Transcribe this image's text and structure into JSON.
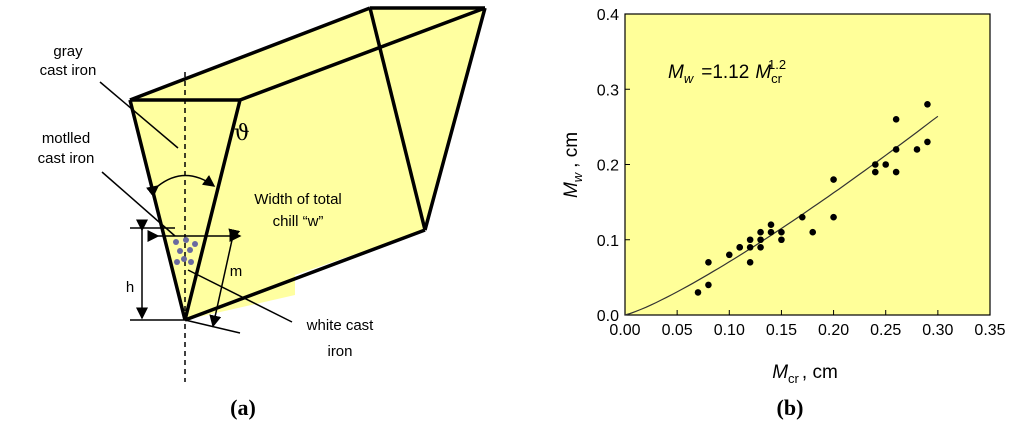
{
  "diagram": {
    "gray_label": [
      "gray",
      "cast iron"
    ],
    "mottled_label": [
      "motlled",
      "cast iron"
    ],
    "width_label": [
      "Width of total",
      "chill “w”"
    ],
    "white_label": [
      "white cast",
      "iron"
    ],
    "h_label": "h",
    "m_label": "m",
    "angle_label": "ϑ",
    "panel_label": "(a)"
  },
  "panel_label_b": "(b)",
  "chart_data": {
    "type": "scatter",
    "x": [
      0.07,
      0.08,
      0.08,
      0.1,
      0.11,
      0.11,
      0.12,
      0.12,
      0.12,
      0.13,
      0.13,
      0.13,
      0.14,
      0.14,
      0.15,
      0.15,
      0.17,
      0.18,
      0.2,
      0.2,
      0.24,
      0.24,
      0.25,
      0.26,
      0.26,
      0.26,
      0.28,
      0.29,
      0.29
    ],
    "values": [
      0.03,
      0.04,
      0.07,
      0.08,
      0.09,
      0.09,
      0.07,
      0.1,
      0.09,
      0.11,
      0.09,
      0.1,
      0.12,
      0.11,
      0.1,
      0.11,
      0.13,
      0.11,
      0.18,
      0.13,
      0.2,
      0.19,
      0.2,
      0.26,
      0.22,
      0.19,
      0.22,
      0.28,
      0.23
    ],
    "color": "#000000",
    "fit": {
      "symbol": "M",
      "subscript": "w",
      "eq": "=",
      "coef": 1.12,
      "rhs_symbol": "M",
      "rhs_subscript": "cr",
      "exponent": 1.2,
      "xrange": [
        0,
        0.3
      ]
    },
    "x_label": {
      "symbol": "M",
      "subscript": "cr",
      "unit": ", cm"
    },
    "y_label": {
      "symbol": "M",
      "subscript": "w",
      "unit": ", cm"
    },
    "xlim": [
      0,
      0.35
    ],
    "ylim": [
      0,
      0.4
    ],
    "xticks": [
      {
        "value": 0,
        "label": "0.00"
      },
      {
        "value": 0.05,
        "label": "0.05"
      },
      {
        "value": 0.1,
        "label": "0.10"
      },
      {
        "value": 0.15,
        "label": "0.15"
      },
      {
        "value": 0.2,
        "label": "0.20"
      },
      {
        "value": 0.25,
        "label": "0.25"
      },
      {
        "value": 0.3,
        "label": "0.30"
      },
      0.35
    ],
    "yticks": [
      {
        "value": 0,
        "label": "0.0"
      },
      0.1,
      0.2,
      0.3,
      0.4
    ],
    "background": "#ffff99"
  }
}
